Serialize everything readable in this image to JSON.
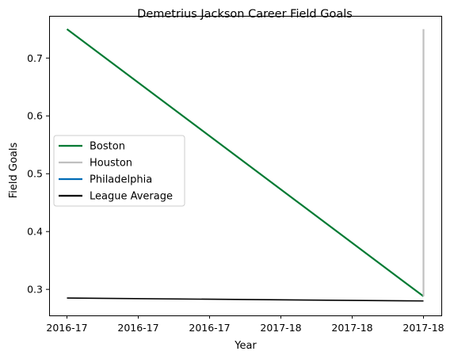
{
  "chart_data": {
    "type": "line",
    "title": "Demetrius Jackson Career Field Goals",
    "xlabel": "Year",
    "ylabel": "Field Goals",
    "x_tick_labels": [
      "2016-17",
      "2016-17",
      "2016-17",
      "2017-18",
      "2017-18",
      "2017-18"
    ],
    "x_range": [
      0,
      1
    ],
    "ylim": [
      0.255,
      0.773
    ],
    "y_ticks": [
      0.3,
      0.4,
      0.5,
      0.6,
      0.7
    ],
    "y_tick_labels": [
      "0.3",
      "0.4",
      "0.5",
      "0.6",
      "0.7"
    ],
    "grid": false,
    "legend_position": "center-left",
    "series": [
      {
        "name": "Boston",
        "color": "#007a33",
        "points": [
          [
            0,
            0.75
          ],
          [
            1,
            0.288
          ]
        ]
      },
      {
        "name": "Houston",
        "color": "#c0c0c0",
        "points": [
          [
            1,
            0.288
          ],
          [
            1,
            0.75
          ]
        ]
      },
      {
        "name": "Philadelphia",
        "color": "#006bb6",
        "points": []
      },
      {
        "name": "League Average",
        "color": "#000000",
        "points": [
          [
            0,
            0.285
          ],
          [
            1,
            0.28
          ]
        ]
      }
    ]
  }
}
